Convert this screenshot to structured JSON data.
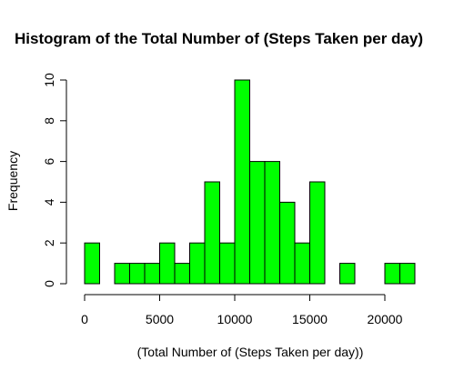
{
  "chart_data": {
    "type": "bar",
    "title": "Histogram of the Total Number of (Steps Taken per day)",
    "xlabel": "(Total Number of (Steps Taken per day))",
    "ylabel": "Frequency",
    "bin_width": 1000,
    "bins_start": [
      0,
      1000,
      2000,
      3000,
      4000,
      5000,
      6000,
      7000,
      8000,
      9000,
      10000,
      11000,
      12000,
      13000,
      14000,
      15000,
      16000,
      17000,
      18000,
      19000,
      20000,
      21000
    ],
    "values": [
      2,
      0,
      1,
      1,
      1,
      2,
      1,
      2,
      5,
      2,
      10,
      6,
      6,
      4,
      2,
      5,
      0,
      1,
      0,
      0,
      1,
      1
    ],
    "x_ticks": [
      "0",
      "5000",
      "10000",
      "15000",
      "20000"
    ],
    "y_ticks": [
      "0",
      "2",
      "4",
      "6",
      "8",
      "10"
    ],
    "xlim": [
      0,
      22000
    ],
    "ylim": [
      0,
      10
    ],
    "bar_color": "#00ff00",
    "grid": false
  }
}
